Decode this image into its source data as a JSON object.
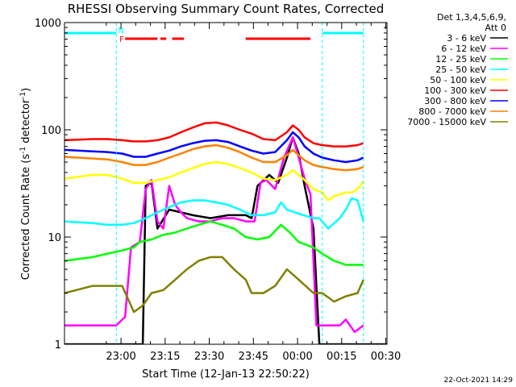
{
  "chart_data": {
    "type": "line",
    "title": "RHESSI Observing Summary Count Rates, Corrected",
    "xlabel": "Start Time (12-Jan-13 22:50:22)",
    "ylabel_main": "Corrected Count Rate (s",
    "ylabel_sup1": "-1",
    "ylabel_mid": " detector",
    "ylabel_sup2": "-1",
    "ylabel_end": ")",
    "y_scale": "log",
    "ylim": [
      1,
      1000
    ],
    "xlim_minutes": [
      -9.6,
      100
    ],
    "x_ticks": [
      {
        "label": "23:00",
        "minutes": 9.6
      },
      {
        "label": "23:15",
        "minutes": 24.6
      },
      {
        "label": "23:30",
        "minutes": 39.6
      },
      {
        "label": "23:45",
        "minutes": 54.6
      },
      {
        "label": "00:00",
        "minutes": 69.6
      },
      {
        "label": "00:15",
        "minutes": 84.6
      },
      {
        "label": "00:30",
        "minutes": 99.6
      }
    ],
    "y_ticks": [
      {
        "label": "1",
        "value": 1
      },
      {
        "label": "10",
        "value": 10
      },
      {
        "label": "100",
        "value": 100
      },
      {
        "label": "1000",
        "value": 1000
      }
    ],
    "legend_header": [
      "Det 1,3,4,5,6,9,",
      "Att 0"
    ],
    "legend_position": "right",
    "series": [
      {
        "name": "3 - 6 keV",
        "color": "#000000",
        "values": [
          [
            -9.6,
            1
          ],
          [
            17,
            1
          ],
          [
            18,
            30
          ],
          [
            20,
            32
          ],
          [
            22,
            12
          ],
          [
            26,
            18
          ],
          [
            30,
            17
          ],
          [
            34,
            16
          ],
          [
            40,
            15
          ],
          [
            46,
            16
          ],
          [
            52,
            16
          ],
          [
            54,
            15
          ],
          [
            56,
            30
          ],
          [
            60,
            38
          ],
          [
            63,
            32
          ],
          [
            66,
            55
          ],
          [
            68,
            85
          ],
          [
            70,
            60
          ],
          [
            72,
            30
          ],
          [
            75,
            12
          ],
          [
            77,
            1
          ],
          [
            100,
            1
          ]
        ]
      },
      {
        "name": "6 - 12 keV",
        "color": "#ff00ff",
        "values": [
          [
            -9.6,
            1.5
          ],
          [
            8,
            1.5
          ],
          [
            11,
            1.8
          ],
          [
            13,
            8
          ],
          [
            16,
            9
          ],
          [
            18,
            28
          ],
          [
            20,
            34
          ],
          [
            22,
            14
          ],
          [
            24,
            12
          ],
          [
            26,
            30
          ],
          [
            28,
            20
          ],
          [
            30,
            17
          ],
          [
            32,
            15
          ],
          [
            36,
            14
          ],
          [
            40,
            14
          ],
          [
            44,
            15
          ],
          [
            48,
            15
          ],
          [
            52,
            14
          ],
          [
            55,
            14
          ],
          [
            57,
            32
          ],
          [
            59,
            34
          ],
          [
            62,
            28
          ],
          [
            65,
            55
          ],
          [
            68,
            85
          ],
          [
            70,
            55
          ],
          [
            72,
            35
          ],
          [
            74,
            25
          ],
          [
            76,
            1.5
          ],
          [
            84,
            1.5
          ],
          [
            86,
            1.7
          ],
          [
            89,
            1.3
          ],
          [
            92,
            1.5
          ]
        ]
      },
      {
        "name": "12 - 25 keV",
        "color": "#00ff00",
        "values": [
          [
            -9.6,
            6
          ],
          [
            0,
            6.5
          ],
          [
            5,
            7
          ],
          [
            10,
            7.5
          ],
          [
            14,
            8
          ],
          [
            16,
            9
          ],
          [
            20,
            9.5
          ],
          [
            24,
            10.5
          ],
          [
            28,
            11
          ],
          [
            32,
            12
          ],
          [
            36,
            13
          ],
          [
            40,
            14
          ],
          [
            44,
            13
          ],
          [
            48,
            12
          ],
          [
            52,
            10
          ],
          [
            56,
            9.5
          ],
          [
            60,
            10
          ],
          [
            64,
            13
          ],
          [
            67,
            11
          ],
          [
            70,
            9
          ],
          [
            75,
            8
          ],
          [
            78,
            7
          ],
          [
            82,
            6
          ],
          [
            86,
            5.5
          ],
          [
            90,
            5.5
          ],
          [
            92,
            5.5
          ]
        ]
      },
      {
        "name": "25 - 50 keV",
        "color": "#00ffff",
        "values": [
          [
            -9.6,
            14
          ],
          [
            0,
            13.5
          ],
          [
            5,
            13
          ],
          [
            10,
            13
          ],
          [
            14,
            13.5
          ],
          [
            18,
            15
          ],
          [
            22,
            17
          ],
          [
            26,
            19
          ],
          [
            30,
            21
          ],
          [
            34,
            22
          ],
          [
            38,
            22
          ],
          [
            42,
            21
          ],
          [
            46,
            20
          ],
          [
            50,
            18
          ],
          [
            54,
            16
          ],
          [
            58,
            16
          ],
          [
            62,
            17
          ],
          [
            64,
            21
          ],
          [
            66,
            18
          ],
          [
            70,
            16.5
          ],
          [
            75,
            15
          ],
          [
            77,
            15
          ],
          [
            80,
            12
          ],
          [
            84,
            15
          ],
          [
            86,
            18
          ],
          [
            88,
            23
          ],
          [
            90,
            22
          ],
          [
            92,
            14
          ]
        ]
      },
      {
        "name": "50 - 100 keV",
        "color": "#ffff00",
        "values": [
          [
            -9.6,
            35
          ],
          [
            0,
            38
          ],
          [
            5,
            38
          ],
          [
            10,
            35
          ],
          [
            14,
            32
          ],
          [
            18,
            32
          ],
          [
            22,
            34
          ],
          [
            26,
            36
          ],
          [
            30,
            40
          ],
          [
            34,
            44
          ],
          [
            38,
            48
          ],
          [
            42,
            50
          ],
          [
            46,
            48
          ],
          [
            50,
            44
          ],
          [
            54,
            40
          ],
          [
            58,
            35
          ],
          [
            62,
            34
          ],
          [
            66,
            38
          ],
          [
            68,
            42
          ],
          [
            70,
            38
          ],
          [
            72,
            34
          ],
          [
            75,
            28
          ],
          [
            78,
            26
          ],
          [
            80,
            22
          ],
          [
            82,
            24
          ],
          [
            84,
            25
          ],
          [
            86,
            26
          ],
          [
            88,
            26
          ],
          [
            90,
            28
          ],
          [
            92,
            33
          ]
        ]
      },
      {
        "name": "100 - 300 keV",
        "color": "#ff0000",
        "values": [
          [
            -9.6,
            80
          ],
          [
            0,
            82
          ],
          [
            5,
            82
          ],
          [
            10,
            80
          ],
          [
            14,
            78
          ],
          [
            18,
            78
          ],
          [
            22,
            80
          ],
          [
            26,
            85
          ],
          [
            30,
            95
          ],
          [
            34,
            105
          ],
          [
            38,
            115
          ],
          [
            42,
            117
          ],
          [
            46,
            110
          ],
          [
            50,
            100
          ],
          [
            54,
            92
          ],
          [
            58,
            82
          ],
          [
            62,
            80
          ],
          [
            66,
            95
          ],
          [
            68,
            110
          ],
          [
            70,
            100
          ],
          [
            72,
            85
          ],
          [
            75,
            75
          ],
          [
            78,
            72
          ],
          [
            82,
            70
          ],
          [
            86,
            70
          ],
          [
            90,
            72
          ],
          [
            92,
            75
          ]
        ]
      },
      {
        "name": "300 - 800 keV",
        "color": "#0000ff",
        "values": [
          [
            -9.6,
            65
          ],
          [
            0,
            63
          ],
          [
            5,
            62
          ],
          [
            10,
            60
          ],
          [
            14,
            56
          ],
          [
            18,
            56
          ],
          [
            22,
            60
          ],
          [
            26,
            64
          ],
          [
            30,
            70
          ],
          [
            34,
            75
          ],
          [
            38,
            79
          ],
          [
            42,
            80
          ],
          [
            46,
            77
          ],
          [
            50,
            70
          ],
          [
            54,
            64
          ],
          [
            58,
            60
          ],
          [
            62,
            62
          ],
          [
            66,
            80
          ],
          [
            68,
            95
          ],
          [
            70,
            85
          ],
          [
            72,
            70
          ],
          [
            75,
            60
          ],
          [
            78,
            55
          ],
          [
            82,
            52
          ],
          [
            86,
            50
          ],
          [
            90,
            52
          ],
          [
            92,
            55
          ]
        ]
      },
      {
        "name": "800 - 7000 keV",
        "color": "#ff8000",
        "values": [
          [
            -9.6,
            56
          ],
          [
            0,
            54
          ],
          [
            5,
            53
          ],
          [
            10,
            50
          ],
          [
            14,
            47
          ],
          [
            18,
            47
          ],
          [
            22,
            50
          ],
          [
            26,
            55
          ],
          [
            30,
            60
          ],
          [
            34,
            66
          ],
          [
            38,
            70
          ],
          [
            42,
            72
          ],
          [
            46,
            68
          ],
          [
            50,
            62
          ],
          [
            54,
            55
          ],
          [
            58,
            50
          ],
          [
            62,
            50
          ],
          [
            66,
            58
          ],
          [
            68,
            65
          ],
          [
            70,
            58
          ],
          [
            72,
            52
          ],
          [
            75,
            47
          ],
          [
            78,
            45
          ],
          [
            82,
            43
          ],
          [
            86,
            42
          ],
          [
            90,
            43
          ],
          [
            92,
            45
          ]
        ]
      },
      {
        "name": "7000 - 15000 keV",
        "color": "#808000",
        "values": [
          [
            -9.6,
            3
          ],
          [
            0,
            3.5
          ],
          [
            5,
            3.5
          ],
          [
            10,
            3.5
          ],
          [
            14,
            2
          ],
          [
            17,
            2.3
          ],
          [
            20,
            3
          ],
          [
            24,
            3.2
          ],
          [
            28,
            4
          ],
          [
            32,
            5
          ],
          [
            36,
            6
          ],
          [
            40,
            6.5
          ],
          [
            44,
            6.5
          ],
          [
            48,
            5
          ],
          [
            52,
            4
          ],
          [
            54,
            3
          ],
          [
            58,
            3
          ],
          [
            62,
            3.5
          ],
          [
            66,
            5
          ],
          [
            70,
            4
          ],
          [
            75,
            3
          ],
          [
            78,
            3
          ],
          [
            82,
            2.5
          ],
          [
            86,
            2.8
          ],
          [
            90,
            3
          ],
          [
            92,
            4
          ]
        ]
      }
    ],
    "flags": {
      "night_label": "N",
      "flare_label": "F",
      "night_intervals_minutes": [
        [
          -9.6,
          8
        ],
        [
          78,
          92
        ]
      ],
      "flare_intervals_minutes": [
        [
          11,
          22
        ],
        [
          23,
          25
        ],
        [
          27,
          31
        ],
        [
          52,
          74
        ]
      ],
      "night_color": "#00ffff",
      "flare_color": "#ff0000"
    },
    "footer_date": "22-Oct-2021 14:29"
  }
}
